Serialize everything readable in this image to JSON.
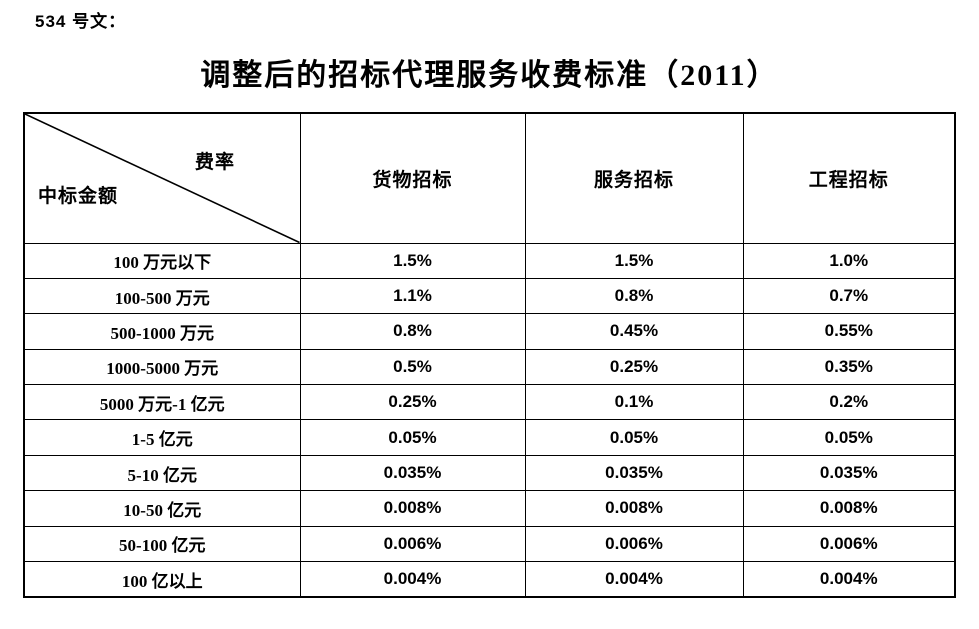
{
  "page": {
    "doc_label": "534 号文：",
    "title": "调整后的招标代理服务收费标准（2011）"
  },
  "table": {
    "corner": {
      "top_right": "费率",
      "bottom_left": "中标金额"
    },
    "columns": [
      "货物招标",
      "服务招标",
      "工程招标"
    ],
    "rows": [
      {
        "label": "100 万元以下",
        "values": [
          "1.5%",
          "1.5%",
          "1.0%"
        ]
      },
      {
        "label": "100-500 万元",
        "values": [
          "1.1%",
          "0.8%",
          "0.7%"
        ]
      },
      {
        "label": "500-1000 万元",
        "values": [
          "0.8%",
          "0.45%",
          "0.55%"
        ]
      },
      {
        "label": "1000-5000 万元",
        "values": [
          "0.5%",
          "0.25%",
          "0.35%"
        ]
      },
      {
        "label": "5000 万元-1 亿元",
        "values": [
          "0.25%",
          "0.1%",
          "0.2%"
        ]
      },
      {
        "label": "1-5 亿元",
        "values": [
          "0.05%",
          "0.05%",
          "0.05%"
        ]
      },
      {
        "label": "5-10 亿元",
        "values": [
          "0.035%",
          "0.035%",
          "0.035%"
        ]
      },
      {
        "label": "10-50 亿元",
        "values": [
          "0.008%",
          "0.008%",
          "0.008%"
        ]
      },
      {
        "label": "50-100 亿元",
        "values": [
          "0.006%",
          "0.006%",
          "0.006%"
        ]
      },
      {
        "label": "100 亿以上",
        "values": [
          "0.004%",
          "0.004%",
          "0.004%"
        ]
      }
    ]
  },
  "colors": {
    "background": "#ffffff",
    "text": "#000000",
    "border": "#000000"
  }
}
